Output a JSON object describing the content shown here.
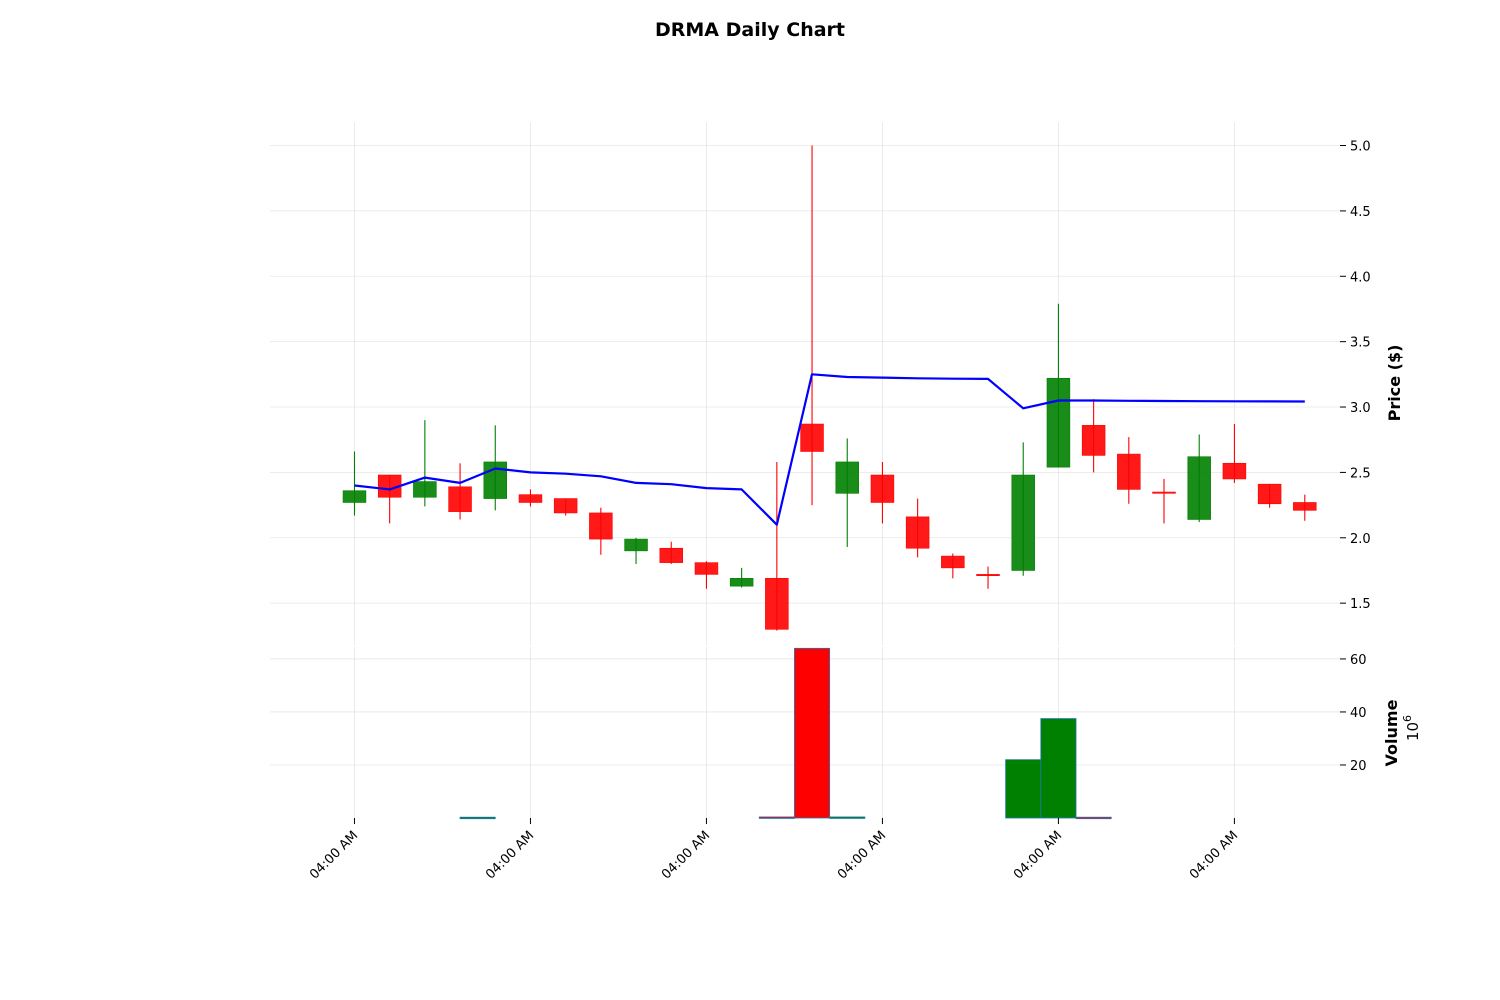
{
  "chart_data": {
    "type": "candlestick",
    "title": "DRMA Daily Chart",
    "price_axis": {
      "label": "Price ($)",
      "ticks": [
        "5.0",
        "4.5",
        "4.0",
        "3.5",
        "3.0",
        "2.5",
        "2.0",
        "1.5"
      ],
      "tick_values": [
        5.0,
        4.5,
        4.0,
        3.5,
        3.0,
        2.5,
        2.0,
        1.5
      ],
      "ylim": [
        1.18,
        5.18
      ],
      "position": "right"
    },
    "volume_axis": {
      "label": "Volume",
      "exponent_base": "10",
      "exponent_power": "6",
      "ticks": [
        "60",
        "40",
        "20"
      ],
      "tick_values": [
        60,
        40,
        20
      ],
      "ylim": [
        0,
        64.5
      ]
    },
    "x_axis": {
      "tick_labels": [
        "04:00 AM",
        "04:00 AM",
        "04:00 AM",
        "04:00 AM",
        "04:00 AM",
        "04:00 AM"
      ],
      "tick_indices": [
        0,
        5,
        10,
        15,
        20,
        25
      ],
      "index_range": [
        -2.4,
        28.0
      ]
    },
    "grid": true,
    "colors": {
      "up": "#008000",
      "down": "#ff0000",
      "moving_average": "#0000ff",
      "grid": "#e6e6e6",
      "volume_edge": "#1f77b4"
    },
    "candles": [
      {
        "o": 2.27,
        "h": 2.66,
        "l": 2.17,
        "c": 2.36
      },
      {
        "o": 2.48,
        "h": 2.48,
        "l": 2.11,
        "c": 2.31
      },
      {
        "o": 2.31,
        "h": 2.9,
        "l": 2.24,
        "c": 2.43
      },
      {
        "o": 2.39,
        "h": 2.57,
        "l": 2.14,
        "c": 2.2
      },
      {
        "o": 2.3,
        "h": 2.86,
        "l": 2.21,
        "c": 2.58
      },
      {
        "o": 2.33,
        "h": 2.37,
        "l": 2.24,
        "c": 2.27
      },
      {
        "o": 2.3,
        "h": 2.3,
        "l": 2.17,
        "c": 2.19
      },
      {
        "o": 2.19,
        "h": 2.23,
        "l": 1.87,
        "c": 1.99
      },
      {
        "o": 1.9,
        "h": 2.0,
        "l": 1.8,
        "c": 1.99
      },
      {
        "o": 1.92,
        "h": 1.97,
        "l": 1.8,
        "c": 1.81
      },
      {
        "o": 1.81,
        "h": 1.82,
        "l": 1.61,
        "c": 1.72
      },
      {
        "o": 1.63,
        "h": 1.77,
        "l": 1.62,
        "c": 1.69
      },
      {
        "o": 1.69,
        "h": 2.58,
        "l": 1.29,
        "c": 1.3
      },
      {
        "o": 2.87,
        "h": 5.0,
        "l": 2.25,
        "c": 2.66
      },
      {
        "o": 2.34,
        "h": 2.76,
        "l": 1.93,
        "c": 2.58
      },
      {
        "o": 2.48,
        "h": 2.58,
        "l": 2.11,
        "c": 2.27
      },
      {
        "o": 2.16,
        "h": 2.3,
        "l": 1.85,
        "c": 1.92
      },
      {
        "o": 1.86,
        "h": 1.88,
        "l": 1.69,
        "c": 1.77
      },
      {
        "o": 1.72,
        "h": 1.78,
        "l": 1.61,
        "c": 1.71
      },
      {
        "o": 1.75,
        "h": 2.73,
        "l": 1.71,
        "c": 2.48
      },
      {
        "o": 2.54,
        "h": 3.79,
        "l": 2.54,
        "c": 3.22
      },
      {
        "o": 2.86,
        "h": 3.06,
        "l": 2.5,
        "c": 2.63
      },
      {
        "o": 2.64,
        "h": 2.77,
        "l": 2.26,
        "c": 2.37
      },
      {
        "o": 2.35,
        "h": 2.45,
        "l": 2.11,
        "c": 2.34
      },
      {
        "o": 2.14,
        "h": 2.79,
        "l": 2.12,
        "c": 2.62
      },
      {
        "o": 2.57,
        "h": 2.87,
        "l": 2.42,
        "c": 2.45
      },
      {
        "o": 2.41,
        "h": 2.41,
        "l": 2.23,
        "c": 2.26
      },
      {
        "o": 2.27,
        "h": 2.33,
        "l": 2.13,
        "c": 2.21
      }
    ],
    "moving_average": [
      2.4,
      2.37,
      2.46,
      2.42,
      2.53,
      2.5,
      2.49,
      2.47,
      2.42,
      2.41,
      2.38,
      2.37,
      2.1,
      3.25,
      3.23,
      3.225,
      3.22,
      3.217,
      3.215,
      2.99,
      3.05,
      3.05,
      3.048,
      3.046,
      3.045,
      3.044,
      3.043,
      3.042
    ],
    "volume_bars": [
      {
        "i": 3.5,
        "v": 0.3,
        "dir": "up"
      },
      {
        "i": 12.0,
        "v": 0.4,
        "dir": "down"
      },
      {
        "i": 13.0,
        "v": 64.0,
        "dir": "down"
      },
      {
        "i": 14.0,
        "v": 0.4,
        "dir": "up"
      },
      {
        "i": 19.0,
        "v": 22.0,
        "dir": "up"
      },
      {
        "i": 20.0,
        "v": 37.5,
        "dir": "up"
      },
      {
        "i": 21.0,
        "v": 0.3,
        "dir": "down"
      }
    ]
  }
}
